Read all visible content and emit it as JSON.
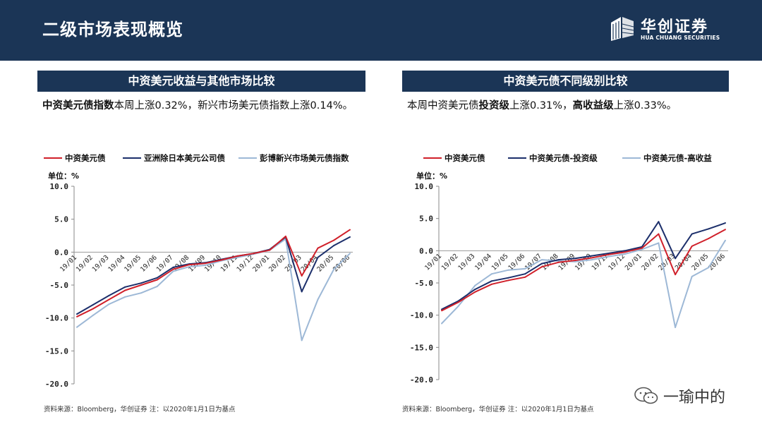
{
  "header": {
    "title": "二级市场表现概览"
  },
  "logo": {
    "name_cn": "华创证券",
    "name_en": "HUA CHUANG SECURITIES"
  },
  "left_section": {
    "heading": "中资美元收益与其他市场比较",
    "desc_bold": "中资美元债指数",
    "desc_rest": "本周上涨0.32%，新兴市场美元债指数上涨0.14%。",
    "source": "资料来源：Bloomberg，华创证券   注：以2020年1月1日为基点"
  },
  "right_section": {
    "heading": "中资美元债不同级别比较",
    "desc_p1": "本周中资美元债",
    "desc_b1": "投资级",
    "desc_p2": "上涨0.31%，",
    "desc_b2": "高收益级",
    "desc_p3": "上涨0.33%。",
    "source": "资料来源：Bloomberg，华创证券   注：以2020年1月1日为基点"
  },
  "watermark": {
    "text": "一瑜中的"
  },
  "colors": {
    "header_bg": "#1b3556",
    "red": "#d0202a",
    "navy": "#1c2f6b",
    "lightblue": "#9db8d6"
  },
  "chart_data": [
    {
      "type": "line",
      "unit_label": "单位：%",
      "ylim": [
        -20,
        10
      ],
      "yticks": [
        "10.0",
        "5.0",
        "0.0",
        "-5.0",
        "-10.0",
        "-15.0",
        "-20.0"
      ],
      "categories": [
        "19/01",
        "19/02",
        "19/03",
        "19/04",
        "19/05",
        "19/06",
        "19/07",
        "19/08",
        "19/09",
        "19/10",
        "19/11",
        "19/12",
        "20/01",
        "20/02",
        "20/03",
        "20/04",
        "20/05",
        "20/06"
      ],
      "series": [
        {
          "name": "中资美元债",
          "color": "#d0202a",
          "values": [
            -9.8,
            -8.6,
            -7.2,
            -5.8,
            -5.0,
            -4.2,
            -2.6,
            -1.9,
            -1.7,
            -1.2,
            -0.6,
            -0.2,
            0.3,
            2.4,
            -3.6,
            0.6,
            1.8,
            3.4
          ]
        },
        {
          "name": "亚洲除日本美元公司债",
          "color": "#1c2f6b",
          "values": [
            -9.4,
            -8.0,
            -6.6,
            -5.3,
            -4.7,
            -3.9,
            -2.3,
            -1.8,
            -1.6,
            -1.1,
            -0.6,
            -0.2,
            0.4,
            2.3,
            -6.0,
            -0.8,
            1.0,
            2.3
          ]
        },
        {
          "name": "彭博新兴市场美元债指数",
          "color": "#9db8d6",
          "values": [
            -11.4,
            -9.6,
            -7.9,
            -6.8,
            -6.2,
            -5.2,
            -2.9,
            -2.2,
            -2.0,
            -1.3,
            -0.8,
            -0.3,
            0.3,
            2.0,
            -13.4,
            -7.2,
            -2.6,
            -0.2
          ]
        }
      ]
    },
    {
      "type": "line",
      "unit_label": "单位：%",
      "ylim": [
        -20,
        10
      ],
      "yticks": [
        "10.0",
        "5.0",
        "0.0",
        "-5.0",
        "-10.0",
        "-15.0",
        "-20.0"
      ],
      "categories": [
        "19/01",
        "19/02",
        "19/03",
        "19/04",
        "19/05",
        "19/06",
        "19/07",
        "19/08",
        "19/09",
        "19/10",
        "19/11",
        "19/12",
        "20/01",
        "20/02",
        "20/03",
        "20/04",
        "20/05",
        "20/06"
      ],
      "series": [
        {
          "name": "中资美元债",
          "color": "#d0202a",
          "values": [
            -9.3,
            -8.0,
            -6.4,
            -5.2,
            -4.6,
            -4.1,
            -2.5,
            -1.8,
            -1.5,
            -1.1,
            -0.6,
            -0.2,
            0.4,
            2.6,
            -3.7,
            0.7,
            1.9,
            3.3
          ]
        },
        {
          "name": "中资美元债-投资级",
          "color": "#1c2f6b",
          "values": [
            -9.1,
            -7.8,
            -6.0,
            -4.7,
            -4.2,
            -3.6,
            -2.0,
            -1.4,
            -1.2,
            -0.8,
            -0.4,
            0.0,
            0.6,
            4.5,
            -1.2,
            2.6,
            3.4,
            4.3
          ]
        },
        {
          "name": "中资美元债-高收益",
          "color": "#9db8d6",
          "values": [
            -11.3,
            -8.6,
            -5.4,
            -3.6,
            -3.0,
            -2.8,
            -1.4,
            -1.6,
            -1.7,
            -1.4,
            -0.9,
            -0.5,
            0.2,
            1.2,
            -11.9,
            -4.0,
            -2.6,
            1.6
          ]
        }
      ]
    }
  ]
}
